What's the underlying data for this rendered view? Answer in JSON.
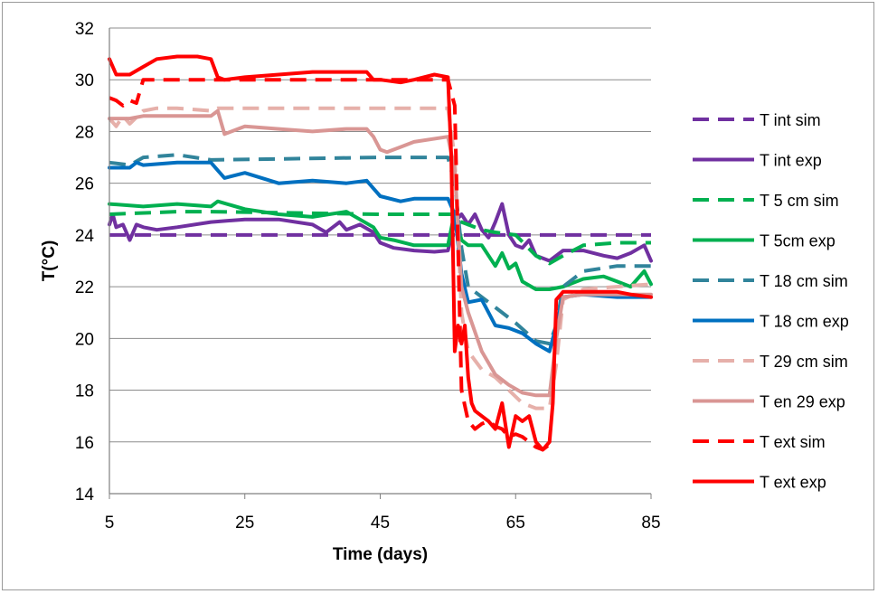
{
  "chart_data": {
    "type": "line",
    "xlabel": "Time (days)",
    "ylabel": "T(°C)",
    "xlim": [
      5,
      85
    ],
    "ylim": [
      14,
      32
    ],
    "xticks": [
      5,
      25,
      45,
      65,
      85
    ],
    "yticks": [
      14,
      16,
      18,
      20,
      22,
      24,
      26,
      28,
      30,
      32
    ],
    "grid": "horizontal",
    "legend_position": "right",
    "series": [
      {
        "name": "T int sim",
        "color": "#7030a0",
        "dashed": true,
        "x": [
          5,
          85
        ],
        "y": [
          24.0,
          24.0
        ]
      },
      {
        "name": "T int exp",
        "color": "#7030a0",
        "dashed": false,
        "x": [
          5,
          5.5,
          6,
          7,
          8,
          9,
          10,
          12,
          15,
          20,
          25,
          30,
          35,
          37,
          38,
          39,
          40,
          42,
          44,
          45,
          47,
          50,
          53,
          55,
          56,
          57,
          58,
          59,
          60,
          61,
          62,
          63,
          64,
          65,
          66,
          67,
          68,
          70,
          72,
          75,
          78,
          80,
          82,
          84,
          85
        ],
        "y": [
          24.4,
          24.8,
          24.3,
          24.4,
          23.8,
          24.4,
          24.3,
          24.2,
          24.3,
          24.5,
          24.6,
          24.6,
          24.4,
          24.1,
          24.3,
          24.5,
          24.2,
          24.4,
          24.1,
          23.7,
          23.5,
          23.4,
          23.35,
          23.4,
          24.5,
          24.8,
          24.4,
          24.8,
          24.2,
          23.9,
          24.5,
          25.2,
          24.0,
          23.6,
          23.5,
          23.8,
          23.2,
          23.0,
          23.4,
          23.4,
          23.2,
          23.1,
          23.3,
          23.6,
          23.0
        ]
      },
      {
        "name": "T 5 cm sim",
        "color": "#00b050",
        "dashed": true,
        "x": [
          5,
          15,
          20,
          45,
          56,
          57,
          60,
          62,
          65,
          68,
          70,
          72,
          75,
          80,
          85
        ],
        "y": [
          24.8,
          24.9,
          24.9,
          24.8,
          24.8,
          24.5,
          24.2,
          24.1,
          24.0,
          23.2,
          22.9,
          23.2,
          23.6,
          23.7,
          23.7
        ]
      },
      {
        "name": "T 5cm exp",
        "color": "#00b050",
        "dashed": false,
        "x": [
          5,
          10,
          15,
          20,
          21,
          25,
          30,
          35,
          40,
          42,
          44,
          45,
          47,
          50,
          55,
          56,
          57,
          58,
          60,
          62,
          63,
          64,
          65,
          66,
          68,
          70,
          72,
          75,
          78,
          80,
          82,
          84,
          85
        ],
        "y": [
          25.2,
          25.1,
          25.2,
          25.1,
          25.3,
          25.0,
          24.8,
          24.7,
          24.9,
          24.6,
          24.3,
          23.9,
          23.8,
          23.6,
          23.6,
          24.9,
          23.8,
          23.6,
          23.6,
          22.8,
          23.3,
          22.7,
          22.9,
          22.2,
          21.9,
          21.9,
          22.0,
          22.3,
          22.4,
          22.2,
          22.0,
          22.6,
          22.1
        ]
      },
      {
        "name": "T 18 cm sim",
        "color": "#31849b",
        "dashed": true,
        "x": [
          5,
          8,
          10,
          15,
          20,
          45,
          55,
          56,
          57,
          58,
          60,
          62,
          65,
          68,
          70,
          71,
          72,
          75,
          80,
          85
        ],
        "y": [
          26.8,
          26.7,
          27.0,
          27.1,
          26.9,
          27.0,
          27.0,
          26.0,
          23.5,
          22.0,
          21.6,
          21.2,
          20.6,
          19.9,
          19.8,
          20.5,
          22.0,
          22.6,
          22.8,
          22.8
        ]
      },
      {
        "name": "T 18 cm exp",
        "color": "#0070c0",
        "dashed": false,
        "x": [
          5,
          8,
          9,
          10,
          15,
          20,
          21,
          22,
          25,
          30,
          35,
          40,
          43,
          44,
          45,
          48,
          50,
          55,
          56,
          57,
          58,
          60,
          62,
          64,
          66,
          68,
          70,
          71,
          72,
          75,
          80,
          85
        ],
        "y": [
          26.6,
          26.6,
          26.8,
          26.7,
          26.8,
          26.8,
          26.5,
          26.2,
          26.4,
          26.0,
          26.1,
          26.0,
          26.1,
          25.8,
          25.5,
          25.3,
          25.4,
          25.4,
          24.8,
          22.5,
          21.4,
          21.5,
          20.5,
          20.4,
          20.2,
          19.8,
          19.5,
          20.5,
          21.6,
          21.7,
          21.6,
          21.6
        ]
      },
      {
        "name": "T 29 cm sim",
        "color": "#e6b0aa",
        "dashed": true,
        "x": [
          5,
          6,
          7,
          8,
          10,
          12,
          15,
          20,
          21,
          25,
          30,
          45,
          55,
          56,
          57,
          58,
          60,
          62,
          64,
          66,
          68,
          70,
          71,
          72,
          75,
          80,
          85
        ],
        "y": [
          28.5,
          28.2,
          28.6,
          28.3,
          28.8,
          28.9,
          28.9,
          28.8,
          28.9,
          28.9,
          28.9,
          28.9,
          28.9,
          27.0,
          21.0,
          19.5,
          18.8,
          18.5,
          18.0,
          17.5,
          17.3,
          17.3,
          19.0,
          21.5,
          21.9,
          22.0,
          22.1
        ]
      },
      {
        "name": "T en 29 exp",
        "color": "#d99694",
        "dashed": false,
        "x": [
          5,
          8,
          10,
          15,
          20,
          21,
          22,
          25,
          30,
          35,
          40,
          43,
          44,
          45,
          46,
          48,
          50,
          55,
          56,
          57,
          58,
          60,
          62,
          64,
          66,
          68,
          70,
          71,
          72,
          75,
          80,
          85
        ],
        "y": [
          28.5,
          28.5,
          28.6,
          28.6,
          28.6,
          28.8,
          27.9,
          28.2,
          28.1,
          28.0,
          28.1,
          28.1,
          27.8,
          27.3,
          27.2,
          27.4,
          27.6,
          27.8,
          26.5,
          22.0,
          21.0,
          19.5,
          18.6,
          18.2,
          17.9,
          17.8,
          17.8,
          20.0,
          21.6,
          21.7,
          21.7,
          21.7
        ]
      },
      {
        "name": "T ext sim",
        "color": "#ff0000",
        "dashed": true,
        "x": [
          5,
          6,
          7,
          8,
          9,
          10,
          15,
          20,
          25,
          30,
          40,
          45,
          50,
          54,
          55,
          56,
          57,
          58,
          59,
          60,
          61,
          62,
          63,
          64,
          65,
          66,
          67,
          68,
          69,
          70
        ],
        "y": [
          29.3,
          29.2,
          29.0,
          29.2,
          29.1,
          30.0,
          30.0,
          30.0,
          30.0,
          30.0,
          30.0,
          30.0,
          30.0,
          30.0,
          30.0,
          29.0,
          18.0,
          16.8,
          16.5,
          16.7,
          16.8,
          16.6,
          16.5,
          16.2,
          16.3,
          16.2,
          16.0,
          15.8,
          15.7,
          15.9
        ]
      },
      {
        "name": "T ext exp",
        "color": "#ff0000",
        "dashed": false,
        "x": [
          5,
          6,
          8,
          10,
          12,
          15,
          18,
          20,
          21,
          22,
          25,
          30,
          35,
          40,
          43,
          44,
          45,
          48,
          50,
          53,
          55,
          55.5,
          56,
          56.5,
          57,
          57.5,
          58,
          58.5,
          59,
          60,
          61,
          62,
          63,
          64,
          65,
          66,
          67,
          68,
          69,
          70,
          70.5,
          71,
          72,
          75,
          78,
          80,
          82,
          85
        ],
        "y": [
          30.8,
          30.2,
          30.2,
          30.5,
          30.8,
          30.9,
          30.9,
          30.8,
          30.1,
          30.0,
          30.1,
          30.2,
          30.3,
          30.3,
          30.3,
          30.0,
          30.0,
          29.9,
          30.0,
          30.2,
          30.1,
          27.0,
          19.5,
          20.5,
          19.8,
          20.5,
          18.5,
          17.5,
          17.2,
          17.0,
          16.8,
          16.5,
          17.5,
          15.8,
          17.0,
          16.8,
          17.0,
          16.0,
          15.7,
          16.0,
          17.5,
          21.5,
          21.8,
          21.8,
          21.8,
          21.8,
          21.7,
          21.6
        ]
      }
    ]
  }
}
